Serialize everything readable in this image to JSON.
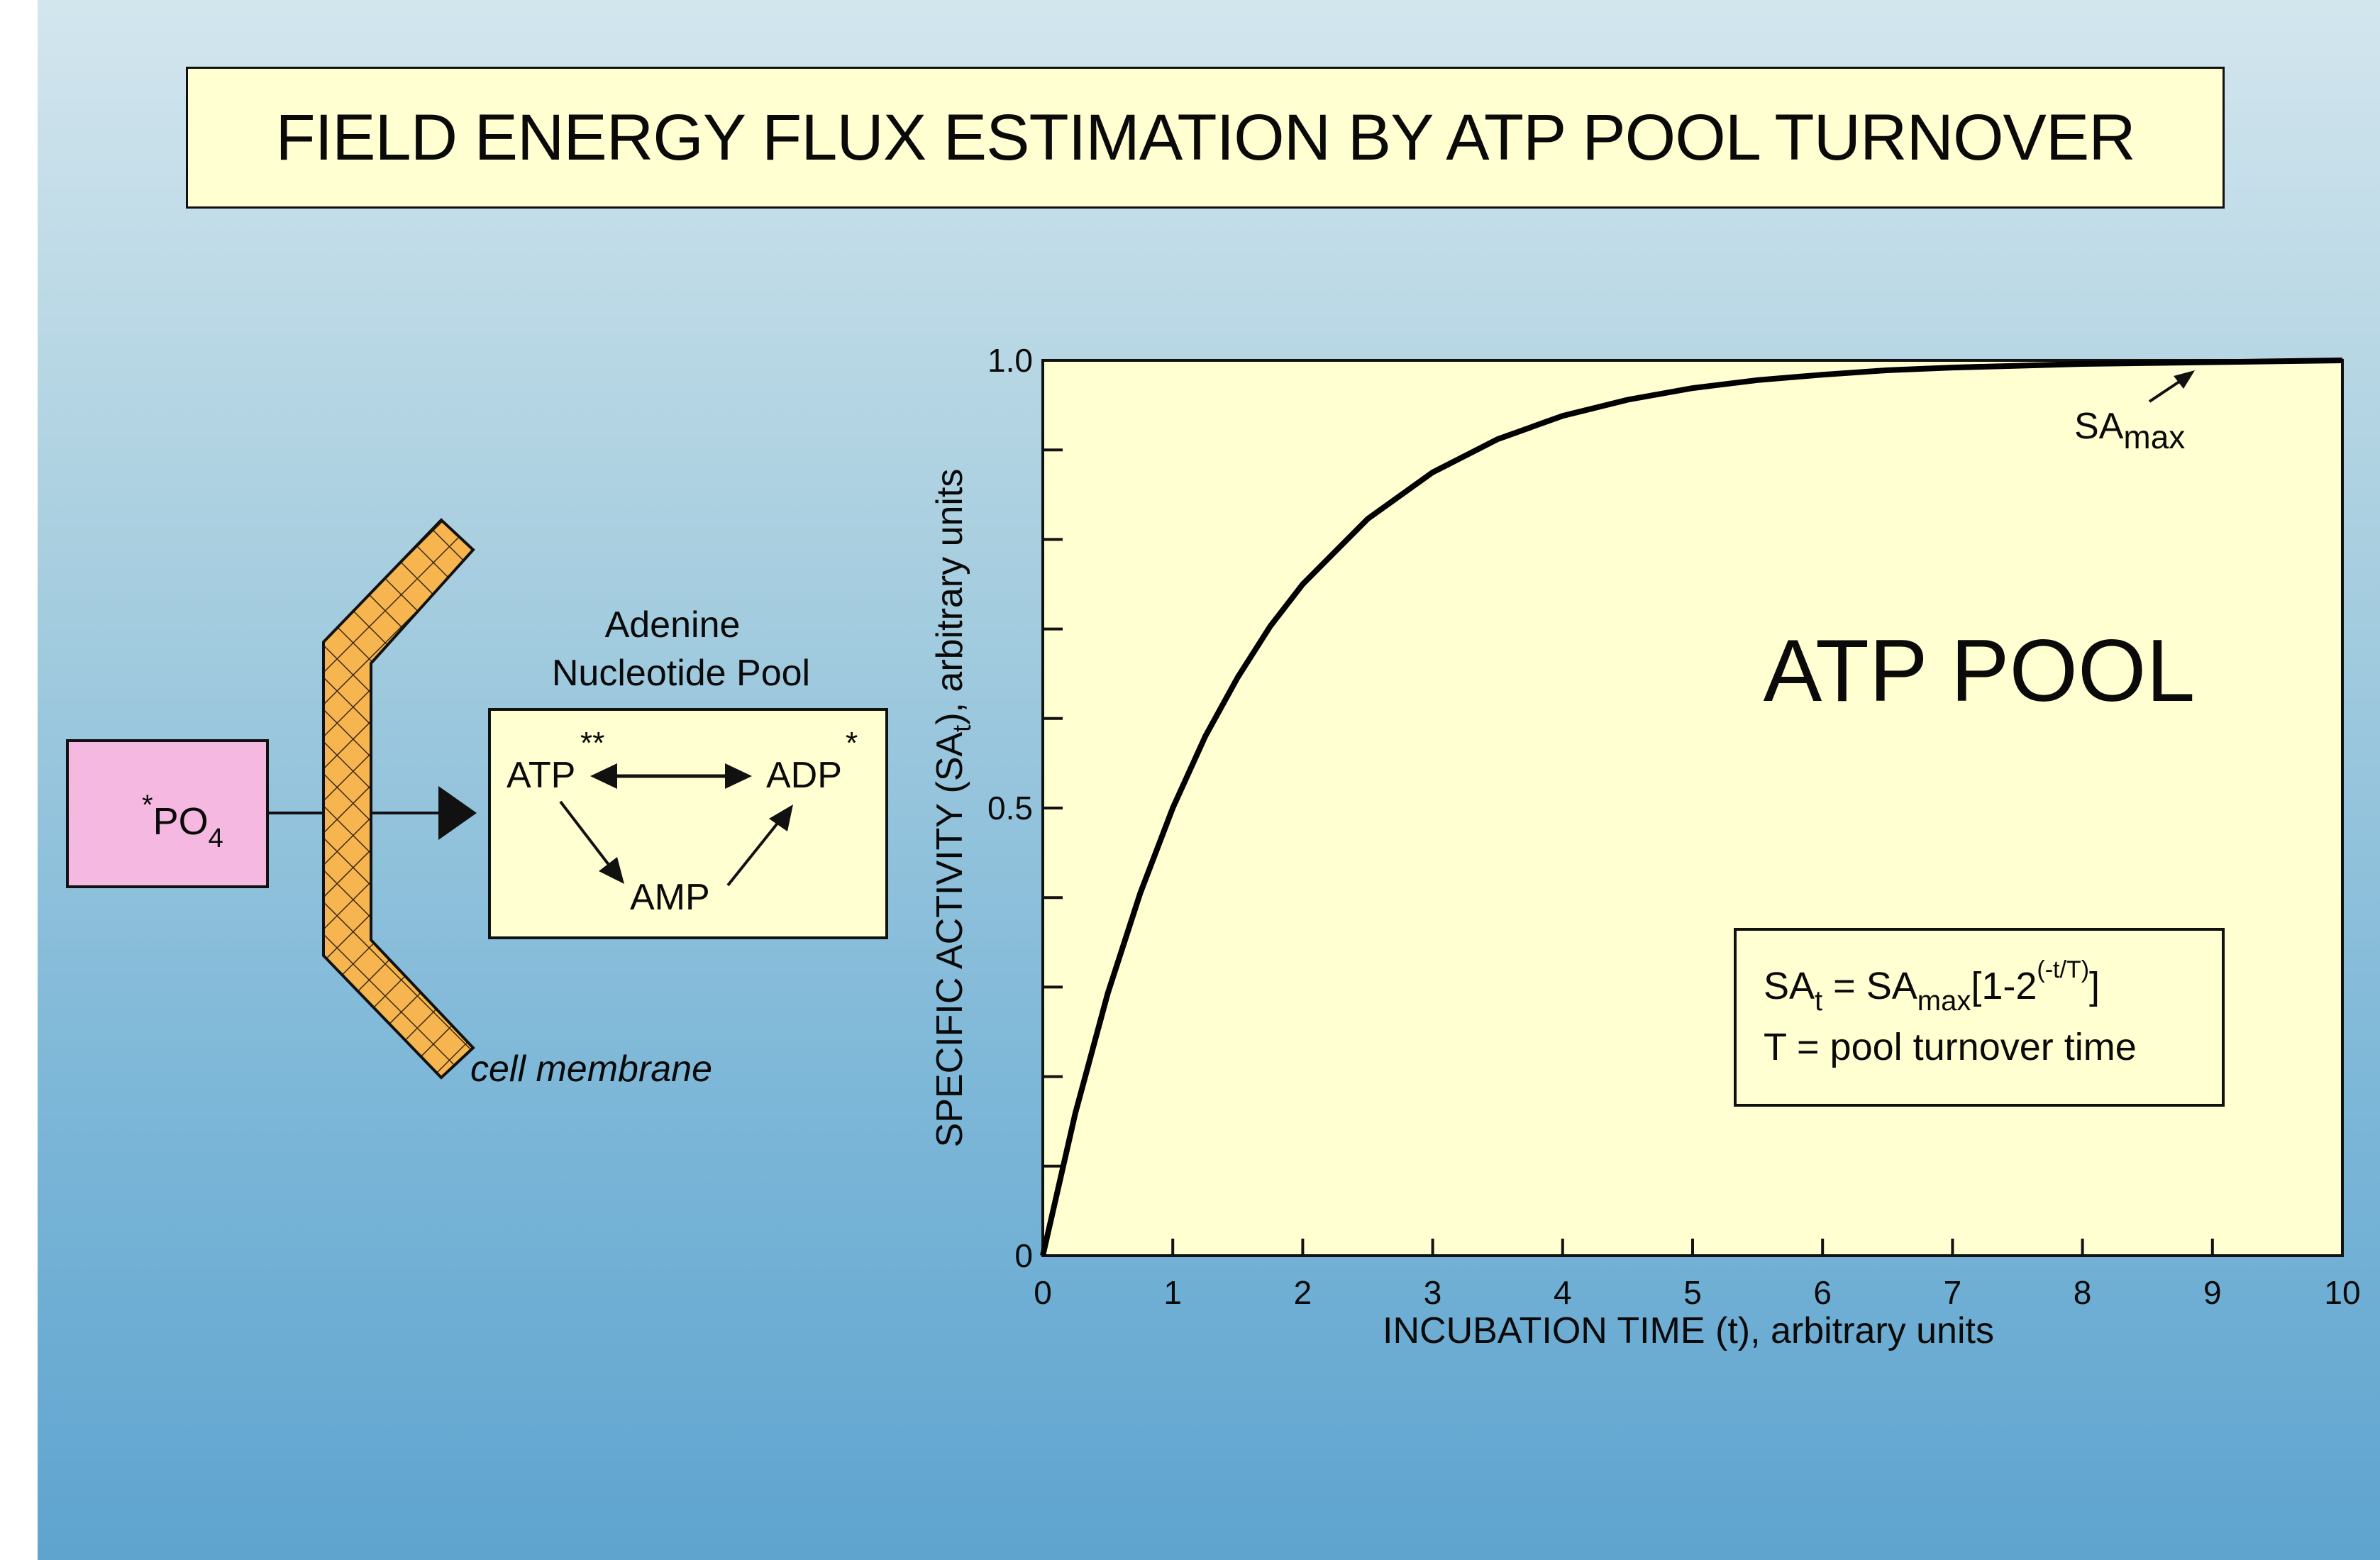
{
  "title": "FIELD ENERGY FLUX ESTIMATION BY ATP POOL TURNOVER",
  "diagram": {
    "phosphate_star": "*",
    "phosphate_main": "PO",
    "phosphate_sub": "4",
    "pool_label_line1": "Adenine",
    "pool_label_line2": "Nucleotide Pool",
    "atp": "ATP",
    "atp_mark": "**",
    "adp": "ADP",
    "adp_mark": "*",
    "amp": "AMP",
    "membrane_label": "cell membrane",
    "colors": {
      "phosphate_box": "#f5b8e0",
      "membrane": "#f7b550",
      "panel": "#ffffd2"
    }
  },
  "chart_data": {
    "type": "line",
    "xlabel": "INCUBATION TIME (t), arbitrary units",
    "ylabel_parts": [
      "SPECIFIC ACTIVITY (SA",
      "t",
      "), arbitrary units"
    ],
    "xlim": [
      0,
      10
    ],
    "ylim": [
      0,
      1.0
    ],
    "x_ticks": [
      "0",
      "1",
      "2",
      "3",
      "4",
      "5",
      "6",
      "7",
      "8",
      "9",
      "10"
    ],
    "y_tick_labels": [
      {
        "value": 0,
        "label": "0"
      },
      {
        "value": 0.5,
        "label": "0.5"
      },
      {
        "value": 1.0,
        "label": "1.0"
      }
    ],
    "y_minor_ticks": [
      0.1,
      0.2,
      0.3,
      0.4,
      0.6,
      0.7,
      0.8,
      0.9
    ],
    "series": [
      {
        "x": [
          0,
          0.25,
          0.5,
          0.75,
          1,
          1.25,
          1.5,
          1.75,
          2,
          2.5,
          3,
          3.5,
          4,
          4.5,
          5,
          5.5,
          6,
          6.5,
          7,
          7.5,
          8,
          8.5,
          9,
          9.5,
          10
        ],
        "values": [
          0,
          0.159,
          0.293,
          0.405,
          0.5,
          0.58,
          0.646,
          0.703,
          0.75,
          0.823,
          0.875,
          0.912,
          0.938,
          0.956,
          0.969,
          0.978,
          0.984,
          0.989,
          0.992,
          0.994,
          0.996,
          0.997,
          0.998,
          0.999,
          1.0
        ]
      }
    ],
    "annotation_big": "ATP POOL",
    "samax_main": "SA",
    "samax_sub": "max",
    "formula": {
      "lhs_main": "SA",
      "lhs_sub": "t",
      "eq": " = SA",
      "rhs_sub": "max",
      "bracket": "[1-2",
      "exponent": "(-t/T)",
      "close": "]",
      "line2": "T = pool turnover time"
    },
    "colors": {
      "plot_background": "#ffffd2",
      "line": "#000000"
    }
  }
}
